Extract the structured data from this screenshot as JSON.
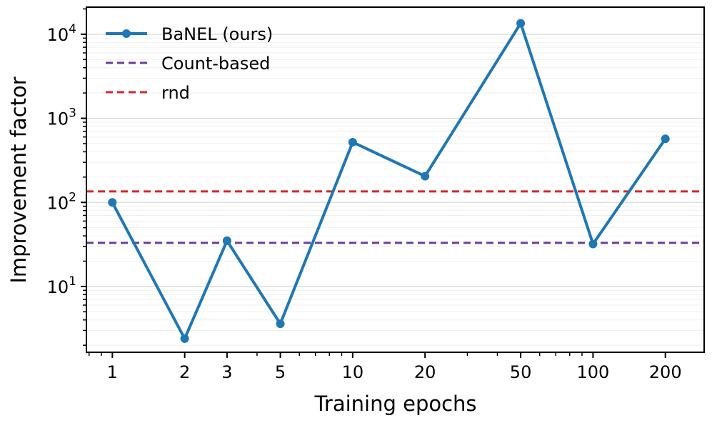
{
  "chart_data": {
    "type": "line",
    "xlabel": "Training epochs",
    "ylabel": "Improvement factor",
    "xscale": "log",
    "yscale": "log",
    "xlim": [
      0.78,
      290
    ],
    "ylim": [
      1.65,
      21000
    ],
    "grid": "y-major-and-minor",
    "legend_position": "top-left",
    "x": [
      1,
      2,
      3,
      5,
      10,
      20,
      50,
      100,
      200
    ],
    "x_tick_labels": [
      "1",
      "2",
      "3",
      "5",
      "10",
      "20",
      "50",
      "100",
      "200"
    ],
    "y_ticks": [
      {
        "base": "10",
        "exp": "1",
        "value": 10
      },
      {
        "base": "10",
        "exp": "2",
        "value": 100
      },
      {
        "base": "10",
        "exp": "3",
        "value": 1000
      },
      {
        "base": "10",
        "exp": "4",
        "value": 10000
      }
    ],
    "series": [
      {
        "name": "BaNEL (ours)",
        "style": "solid-markers",
        "color": "#1f77b4",
        "values": [
          100,
          2.4,
          35,
          3.6,
          520,
          205,
          13500,
          32,
          570
        ]
      },
      {
        "name": "Count-based",
        "style": "dashed",
        "color": "#6a3d9a",
        "constant": 33
      },
      {
        "name": "rnd",
        "style": "dashed",
        "color": "#d62728",
        "constant": 135
      }
    ]
  }
}
